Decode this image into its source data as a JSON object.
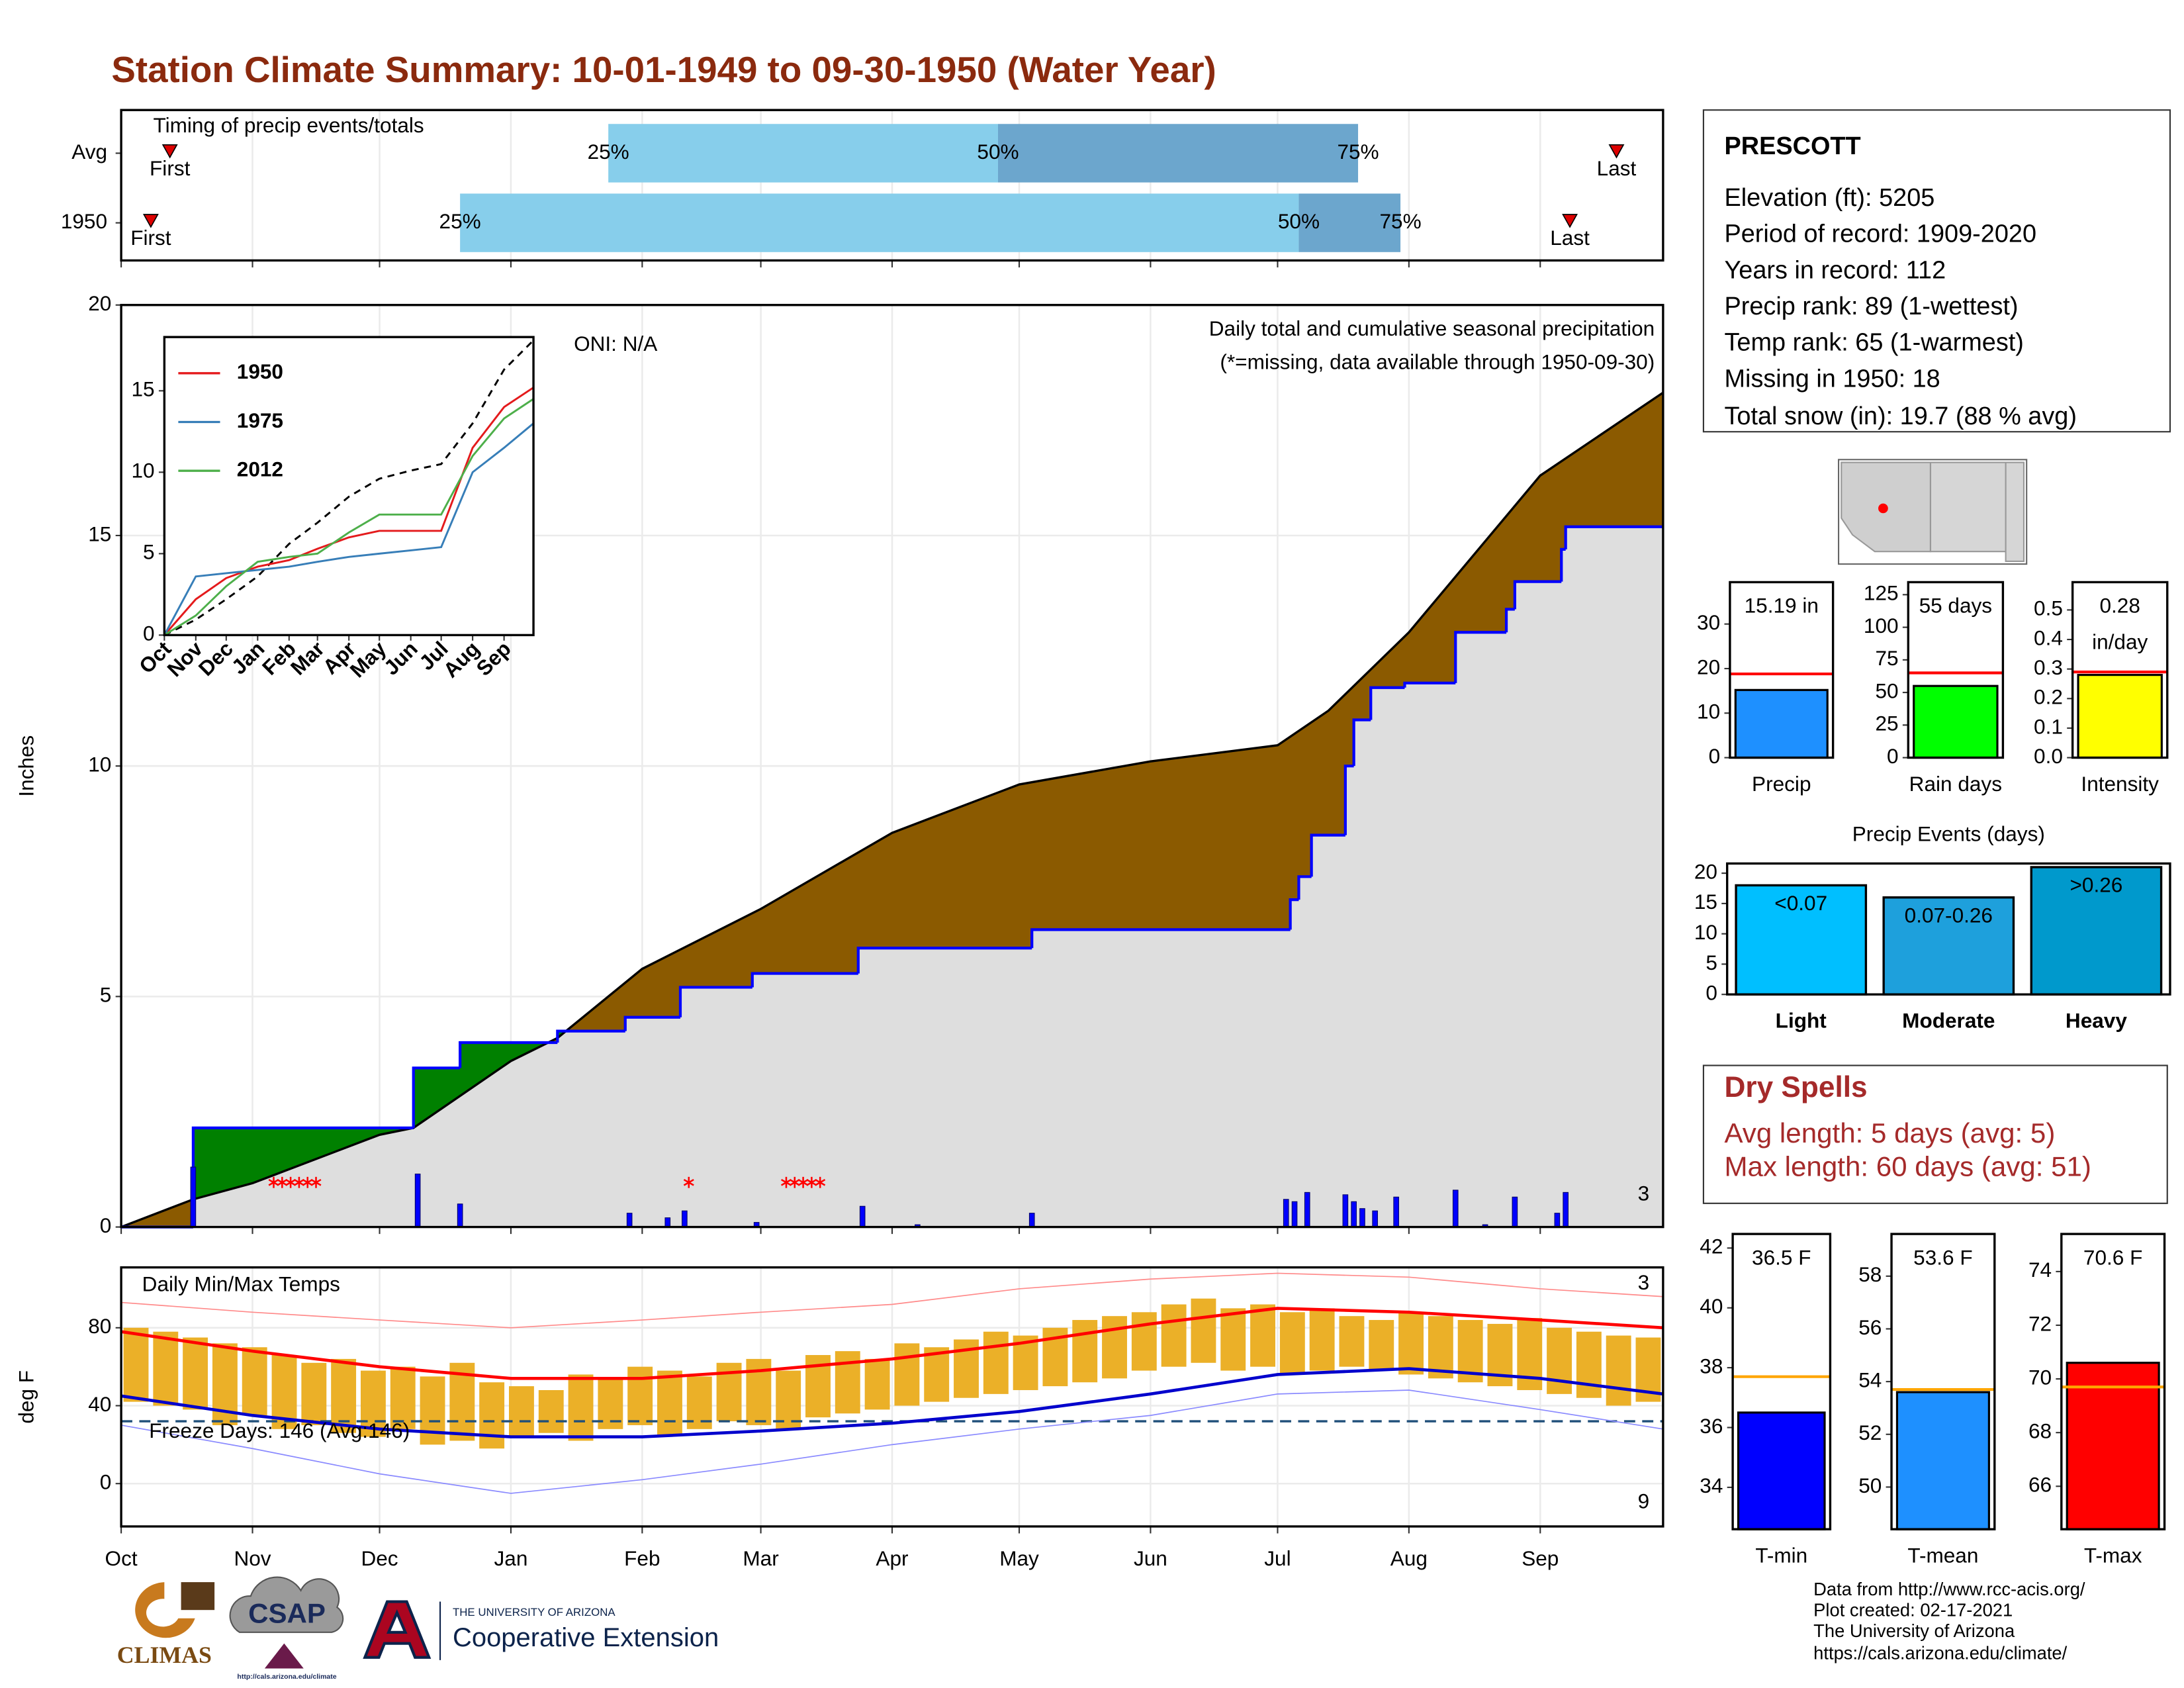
{
  "title": "Station Climate Summary: 10-01-1949 to 09-30-1950 (Water Year)",
  "chart_data": [
    {
      "type": "timing",
      "title": "Timing of precip events/totals",
      "categories": [
        "Avg",
        "1950"
      ],
      "first": [
        11.5,
        7
      ],
      "p25": [
        115,
        80
      ],
      "p50": [
        207,
        278
      ],
      "p75": [
        292,
        302
      ],
      "last": [
        353,
        342
      ],
      "percentile_labels": [
        "25%",
        "50%",
        "75%"
      ],
      "marker_labels": [
        "First",
        "Last"
      ],
      "xlim": [
        0,
        364
      ],
      "colors": [
        "#87CEEB",
        "#6CA6CD"
      ],
      "marker_color": "#DD0000"
    },
    {
      "type": "cumulative",
      "title": "Daily total and cumulative seasonal precipitation",
      "subtitle": "(*=missing, data available through 1950-09-30)",
      "annotation": "ONI: N/A",
      "record_label": "3",
      "ylabel": "Inches",
      "xlim": [
        0,
        364
      ],
      "ylim": [
        0,
        20
      ],
      "yticks": [
        0,
        5,
        10,
        15,
        20
      ],
      "grid": true,
      "average": {
        "x": [
          0,
          17,
          31,
          61,
          69,
          92,
          103,
          123,
          151,
          182,
          212,
          243,
          273,
          285,
          304,
          335,
          364
        ],
        "values": [
          0,
          0.6,
          0.95,
          2.0,
          2.15,
          3.6,
          4.1,
          5.6,
          6.9,
          8.55,
          9.6,
          10.1,
          10.45,
          11.2,
          12.9,
          16.3,
          18.1
        ],
        "color": "#000000"
      },
      "observed": {
        "x": [
          0,
          17,
          69,
          80,
          103,
          119,
          132,
          149,
          174,
          215,
          276,
          278,
          281,
          289,
          291,
          295,
          303,
          315,
          327,
          329,
          340,
          341,
          364
        ],
        "values": [
          0,
          2.15,
          3.45,
          4.0,
          4.25,
          4.55,
          5.2,
          5.5,
          6.05,
          6.45,
          7.1,
          7.6,
          8.5,
          10.0,
          11.0,
          11.7,
          11.8,
          12.9,
          13.4,
          14.0,
          14.7,
          15.19,
          15.19
        ],
        "color": "#0000FF"
      },
      "fills": {
        "below": "#8B5A00",
        "above": "#008000",
        "base": "#DEDEDE"
      },
      "daily": {
        "x": [
          17,
          70,
          80,
          120,
          129,
          133,
          150,
          175,
          188,
          215,
          275,
          277,
          280,
          289,
          291,
          293,
          296,
          301,
          315,
          322,
          329,
          339,
          341
        ],
        "values": [
          1.3,
          1.15,
          0.5,
          0.3,
          0.2,
          0.35,
          0.1,
          0.45,
          0.05,
          0.3,
          0.6,
          0.55,
          0.75,
          0.7,
          0.55,
          0.4,
          0.35,
          0.65,
          0.8,
          0.05,
          0.65,
          0.3,
          0.75
        ],
        "color": "#0000FF"
      },
      "missing_x": [
        36,
        38,
        40,
        42,
        44,
        46,
        134,
        157,
        159,
        161,
        163,
        165
      ],
      "missing_color": "#FF0000",
      "record_color": "#FFA500"
    },
    {
      "type": "line",
      "x": [
        0,
        31,
        61,
        92,
        123,
        151,
        182,
        212,
        243,
        273,
        304,
        335,
        364
      ],
      "xlim": [
        0,
        364
      ],
      "xticks": [
        {
          "value": 0,
          "label": "Oct"
        },
        {
          "value": 31,
          "label": "Nov"
        },
        {
          "value": 61,
          "label": "Dec"
        },
        {
          "value": 92,
          "label": "Jan"
        },
        {
          "value": 123,
          "label": "Feb"
        },
        {
          "value": 151,
          "label": "Mar"
        },
        {
          "value": 182,
          "label": "Apr"
        },
        {
          "value": 212,
          "label": "May"
        },
        {
          "value": 243,
          "label": "Jun"
        },
        {
          "value": 273,
          "label": "Jul"
        },
        {
          "value": 304,
          "label": "Aug"
        },
        {
          "value": 335,
          "label": "Sep"
        }
      ],
      "ylim": [
        0,
        18.3
      ],
      "yticks": [
        0,
        5,
        10,
        15
      ],
      "series": [
        {
          "name": "1950",
          "color": "#E41A1C",
          "values": [
            0,
            2.2,
            3.5,
            4.2,
            4.6,
            5.3,
            6.0,
            6.4,
            6.4,
            6.4,
            11.5,
            14.0,
            15.2
          ]
        },
        {
          "name": "1975",
          "color": "#377EB8",
          "values": [
            0,
            3.6,
            3.8,
            4.0,
            4.2,
            4.5,
            4.8,
            5.0,
            5.2,
            5.4,
            10.0,
            11.5,
            13.0
          ]
        },
        {
          "name": "2012",
          "color": "#4DAF4A",
          "values": [
            0,
            1.2,
            3.0,
            4.5,
            4.8,
            5.0,
            6.3,
            7.4,
            7.4,
            7.4,
            11.0,
            13.3,
            14.5
          ]
        }
      ],
      "average": {
        "color": "#000000",
        "values": [
          0,
          0.95,
          2.2,
          3.6,
          5.6,
          6.9,
          8.5,
          9.6,
          10.1,
          10.5,
          13.0,
          16.3,
          18.1
        ]
      }
    },
    {
      "type": "range",
      "title": "Daily Min/Max Temps",
      "ylabel": "deg F",
      "xlim": [
        0,
        364
      ],
      "ylim": [
        -22,
        111
      ],
      "yticks": [
        0,
        40,
        80
      ],
      "grid": true,
      "xticks": [
        {
          "value": 0,
          "label": "Oct"
        },
        {
          "value": 31,
          "label": "Nov"
        },
        {
          "value": 61,
          "label": "Dec"
        },
        {
          "value": 92,
          "label": "Jan"
        },
        {
          "value": 123,
          "label": "Feb"
        },
        {
          "value": 151,
          "label": "Mar"
        },
        {
          "value": 182,
          "label": "Apr"
        },
        {
          "value": 212,
          "label": "May"
        },
        {
          "value": 243,
          "label": "Jun"
        },
        {
          "value": 273,
          "label": "Jul"
        },
        {
          "value": 304,
          "label": "Aug"
        },
        {
          "value": 335,
          "label": "Sep"
        }
      ],
      "bars": {
        "color": "#EBB028",
        "x": [
          3.5,
          10.5,
          17.5,
          24.5,
          31.5,
          38.5,
          45.5,
          52.5,
          59.5,
          66.5,
          73.5,
          80.5,
          87.5,
          94.5,
          101.5,
          108.5,
          115.5,
          122.5,
          129.5,
          136.5,
          143.5,
          150.5,
          157.5,
          164.5,
          171.5,
          178.5,
          185.5,
          192.5,
          199.5,
          206.5,
          213.5,
          220.5,
          227.5,
          234.5,
          241.5,
          248.5,
          255.5,
          262.5,
          269.5,
          276.5,
          283.5,
          290.5,
          297.5,
          304.5,
          311.5,
          318.5,
          325.5,
          332.5,
          339.5,
          346.5,
          353.5,
          360.5
        ],
        "min": [
          42,
          40,
          38,
          30,
          35,
          28,
          30,
          26,
          24,
          28,
          20,
          22,
          18,
          24,
          26,
          22,
          28,
          30,
          25,
          28,
          32,
          30,
          28,
          34,
          36,
          38,
          40,
          42,
          44,
          46,
          48,
          50,
          52,
          54,
          58,
          60,
          62,
          58,
          60,
          56,
          58,
          60,
          58,
          56,
          54,
          52,
          50,
          48,
          46,
          44,
          40,
          42
        ],
        "max": [
          80,
          78,
          75,
          72,
          70,
          66,
          62,
          64,
          58,
          60,
          55,
          62,
          52,
          50,
          48,
          56,
          54,
          60,
          58,
          55,
          62,
          64,
          58,
          66,
          68,
          64,
          72,
          70,
          74,
          78,
          76,
          80,
          84,
          86,
          88,
          92,
          95,
          90,
          92,
          88,
          90,
          86,
          84,
          88,
          86,
          84,
          82,
          85,
          80,
          78,
          76,
          75
        ]
      },
      "line_x": [
        0,
        31,
        61,
        92,
        123,
        151,
        182,
        212,
        243,
        273,
        304,
        335,
        364
      ],
      "lines": [
        {
          "color": "#FF0000",
          "width": 2.2,
          "values": [
            78,
            68,
            60,
            54,
            54,
            58,
            64,
            72,
            82,
            90,
            88,
            84,
            80
          ]
        },
        {
          "color": "#0000CC",
          "width": 2.2,
          "values": [
            45,
            35,
            28,
            24,
            24,
            27,
            31,
            37,
            46,
            56,
            59,
            54,
            46
          ]
        },
        {
          "color": "#FF8A8A",
          "width": 0.8,
          "values": [
            93,
            88,
            84,
            80,
            84,
            88,
            92,
            100,
            105,
            108,
            106,
            100,
            96
          ]
        },
        {
          "color": "#8A8AFF",
          "width": 0.8,
          "values": [
            30,
            18,
            5,
            -5,
            2,
            10,
            20,
            28,
            35,
            46,
            48,
            38,
            28
          ]
        }
      ],
      "freeze_line": 32,
      "freeze_color": "#1F4E79",
      "freeze_label": "Freeze Days: 146 (Avg:146)",
      "high_record_label": "3",
      "low_record_label": "9"
    },
    {
      "type": "gauge",
      "categories": [
        "Precip"
      ],
      "values": [
        15.19
      ],
      "value_labels": [
        "15.19 in"
      ],
      "avg": 18.8,
      "ylim": [
        0,
        39.4
      ],
      "yticks": [
        0,
        10,
        20,
        30
      ],
      "color": "#1E90FF",
      "avg_color": "#FF0000"
    },
    {
      "type": "gauge",
      "categories": [
        "Rain days"
      ],
      "values": [
        55
      ],
      "value_labels": [
        "55 days"
      ],
      "avg": 65,
      "ylim": [
        0,
        134.6
      ],
      "yticks": [
        0,
        25,
        50,
        75,
        100,
        125
      ],
      "color": "#00FF00",
      "avg_color": "#FF0000"
    },
    {
      "type": "gauge",
      "categories": [
        "Intensity"
      ],
      "values": [
        0.28
      ],
      "unit_label": "in/day",
      "avg": 0.29,
      "ylim": [
        0,
        0.594
      ],
      "yticks": [
        {
          "value": 0,
          "label": "0.0"
        },
        0.1,
        0.2,
        0.3,
        0.4,
        0.5
      ],
      "color": "#FFFF00",
      "avg_color": "#FF0000"
    },
    {
      "type": "bar",
      "title": "Precip Events (days)",
      "categories": [
        "Light",
        "Moderate",
        "Heavy"
      ],
      "values": [
        18,
        16,
        21
      ],
      "bin_labels": [
        "<0.07",
        "0.07-0.26",
        ">0.26"
      ],
      "colors": [
        "#00BFFF",
        "#1EA0DC",
        "#0099CC"
      ],
      "ylim": [
        0,
        21.6
      ],
      "yticks": [
        0,
        5,
        10,
        15,
        20
      ]
    },
    {
      "type": "gauge",
      "categories": [
        "T-min"
      ],
      "values": [
        36.5
      ],
      "value_labels": [
        "36.5 F"
      ],
      "avg": 37.7,
      "ylim": [
        32.6,
        42.47
      ],
      "yticks": [
        34,
        36,
        38,
        40,
        42
      ],
      "color": "#0000FF",
      "avg_color": "#FFA500"
    },
    {
      "type": "gauge",
      "categories": [
        "T-mean"
      ],
      "values": [
        53.6
      ],
      "value_labels": [
        "53.6 F"
      ],
      "avg": 53.7,
      "ylim": [
        48.4,
        59.6
      ],
      "yticks": [
        50,
        52,
        54,
        56,
        58
      ],
      "color": "#1E90FF",
      "avg_color": "#FFA500"
    },
    {
      "type": "gauge",
      "categories": [
        "T-max"
      ],
      "values": [
        70.6
      ],
      "value_labels": [
        "70.6 F"
      ],
      "avg": 69.7,
      "ylim": [
        64.4,
        75.4
      ],
      "yticks": [
        66,
        68,
        70,
        72,
        74
      ],
      "color": "#FF0000",
      "avg_color": "#FFA500"
    }
  ],
  "station": {
    "name": "PRESCOTT",
    "lines": [
      "Elevation (ft): 5205",
      "Period of record: 1909-2020",
      "Years in record: 112",
      "Precip rank: 89 (1-wettest)",
      "Temp rank: 65 (1-warmest)",
      "Missing in 1950: 18",
      "Total snow (in): 19.7 (88 % avg)"
    ]
  },
  "dry_spells": {
    "title": "Dry Spells",
    "lines": [
      "Avg length: 5 days (avg: 5)",
      "Max length: 60 days (avg: 51)"
    ]
  },
  "logos": {
    "climas": "CLIMAS",
    "csap": "CSAP",
    "csap_url": "http://cals.arizona.edu/climate",
    "university": "THE UNIVERSITY OF ARIZONA",
    "extension": "Cooperative Extension"
  },
  "credits": [
    "Data from http://www.rcc-acis.org/",
    "Plot created: 02-17-2021",
    "The University of Arizona",
    "https://cals.arizona.edu/climate/"
  ]
}
